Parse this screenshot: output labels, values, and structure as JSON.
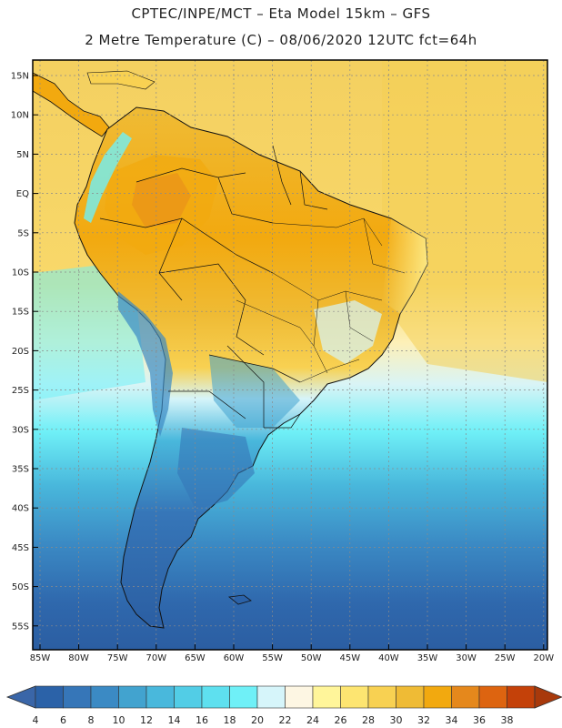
{
  "header": {
    "line1": "CPTEC/INPE/MCT –  Eta Model 15km – GFS",
    "line2": "2 Metre Temperature (C) – 08/06/2020 12UTC fct=64h"
  },
  "axes": {
    "lat_labels": [
      "15N",
      "10N",
      "5N",
      "EQ",
      "5S",
      "10S",
      "15S",
      "20S",
      "25S",
      "30S",
      "35S",
      "40S",
      "45S",
      "50S",
      "55S"
    ],
    "lon_labels": [
      "85W",
      "80W",
      "75W",
      "70W",
      "65W",
      "60W",
      "55W",
      "50W",
      "45W",
      "40W",
      "35W",
      "30W",
      "25W",
      "20W"
    ]
  },
  "colorbar": {
    "levels": [
      "4",
      "6",
      "8",
      "10",
      "12",
      "14",
      "16",
      "18",
      "20",
      "22",
      "24",
      "26",
      "28",
      "30",
      "32",
      "34",
      "36",
      "38"
    ],
    "colors": [
      "#2b62a8",
      "#3676b8",
      "#3b8ac4",
      "#42a3cf",
      "#49b8dc",
      "#52cde6",
      "#5ee0ef",
      "#6ff0f7",
      "#d6f5fa",
      "#fdf6e3",
      "#fff59a",
      "#fde571",
      "#f8d152",
      "#efbb35",
      "#f2a90f",
      "#e5881c",
      "#dd6410",
      "#c44109"
    ]
  },
  "palette": {
    "frame": "#000000",
    "grid": "#8a8a8a",
    "coast": "#111111",
    "ocean_south": "#2f68ad",
    "land_warm": "#efbb35"
  }
}
